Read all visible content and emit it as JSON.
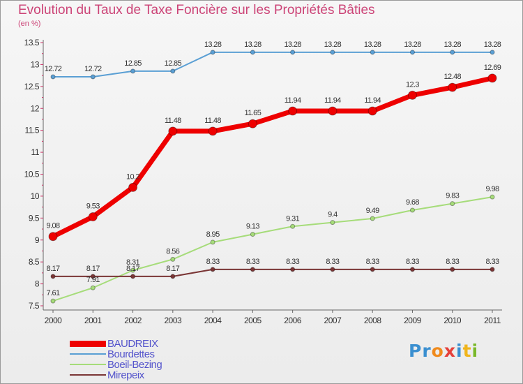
{
  "header": {
    "title": "Evolution du Taux de Taxe Foncière sur les Propriétés Bâties",
    "unit": "(en %)"
  },
  "logo": {
    "letters": [
      "P",
      "r",
      "o",
      "x",
      "i",
      "t",
      "i"
    ],
    "colors": [
      "#3a8fd0",
      "#3a8fd0",
      "#f08a1c",
      "#e5403a",
      "#3a8fd0",
      "#f0b51c",
      "#79b829"
    ]
  },
  "chart_data": {
    "type": "line",
    "x": [
      "2000",
      "2001",
      "2002",
      "2003",
      "2004",
      "2005",
      "2006",
      "2007",
      "2008",
      "2009",
      "2010",
      "2011"
    ],
    "ylim": [
      7.5,
      13.5
    ],
    "yticks": [
      "7.5",
      "8",
      "8.5",
      "9",
      "9.5",
      "10",
      "10.5",
      "11",
      "11.5",
      "12",
      "12.5",
      "13",
      "13.5"
    ],
    "grid": false,
    "legend_position": "bottom-left",
    "series": [
      {
        "name": "BAUDREIX",
        "color": "#ee0000",
        "values": [
          9.08,
          9.53,
          10.2,
          11.48,
          11.48,
          11.65,
          11.94,
          11.94,
          11.94,
          12.3,
          12.48,
          12.69
        ],
        "labels": [
          "9.08",
          "9.53",
          "10.2",
          "11.48",
          "11.48",
          "11.65",
          "11.94",
          "11.94",
          "11.94",
          "12.3",
          "12.48",
          "12.69"
        ]
      },
      {
        "name": "Bourdettes",
        "color": "#5a9fd4",
        "values": [
          12.72,
          12.72,
          12.85,
          12.85,
          13.28,
          13.28,
          13.28,
          13.28,
          13.28,
          13.28,
          13.28,
          13.28
        ],
        "labels": [
          "12.72",
          "12.72",
          "12.85",
          "12.85",
          "13.28",
          "13.28",
          "13.28",
          "13.28",
          "13.28",
          "13.28",
          "13.28",
          "13.28"
        ]
      },
      {
        "name": "Boeil-Bezing",
        "color": "#a6dc7a",
        "values": [
          7.61,
          7.91,
          8.31,
          8.56,
          8.95,
          9.13,
          9.31,
          9.4,
          9.49,
          9.68,
          9.83,
          9.98
        ],
        "labels": [
          "7.61",
          "7.91",
          "8.31",
          "8.56",
          "8.95",
          "9.13",
          "9.31",
          "9.4",
          "9.49",
          "9.68",
          "9.83",
          "9.98"
        ]
      },
      {
        "name": "Mirepeix",
        "color": "#7a3535",
        "values": [
          8.17,
          8.17,
          8.17,
          8.17,
          8.33,
          8.33,
          8.33,
          8.33,
          8.33,
          8.33,
          8.33,
          8.33
        ],
        "labels": [
          "8.17",
          "8.17",
          "8.17",
          "8.17",
          "8.33",
          "8.33",
          "8.33",
          "8.33",
          "8.33",
          "8.33",
          "8.33",
          "8.33"
        ]
      }
    ]
  }
}
